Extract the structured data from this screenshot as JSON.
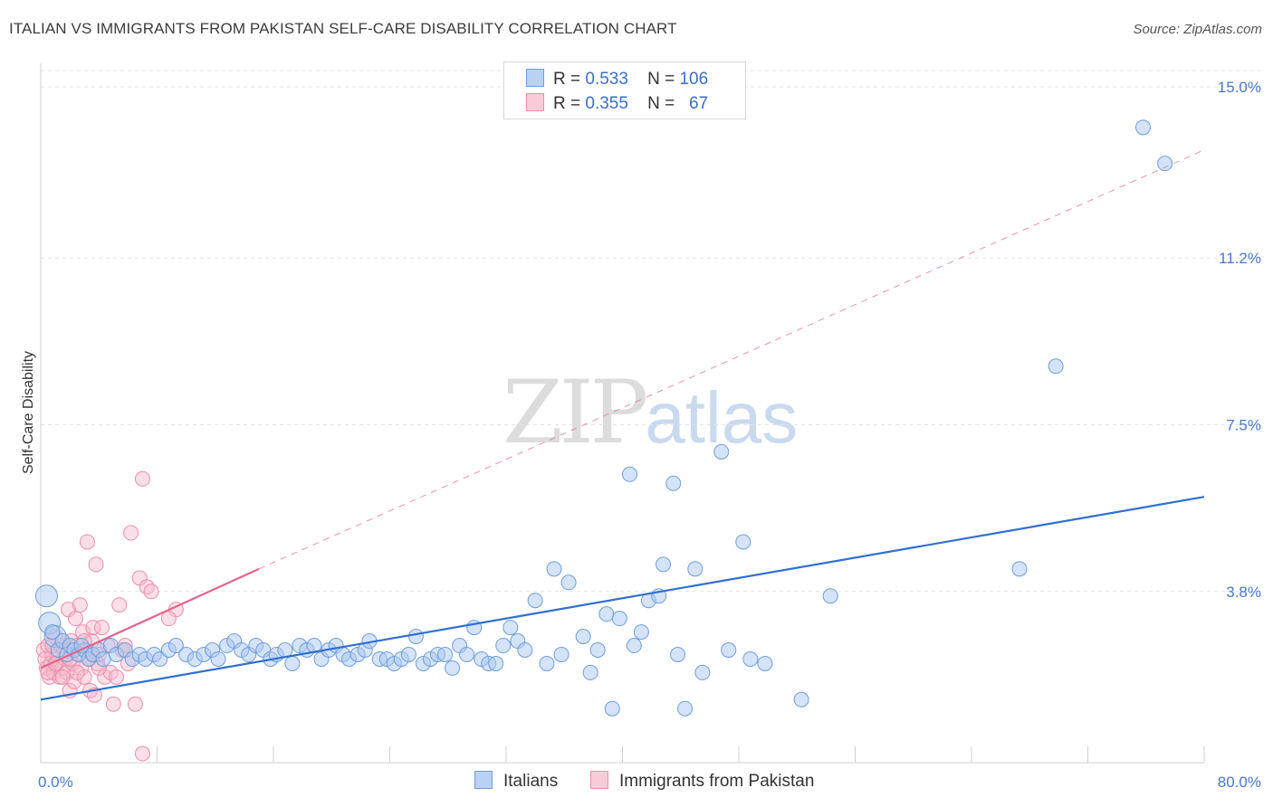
{
  "title": "ITALIAN VS IMMIGRANTS FROM PAKISTAN SELF-CARE DISABILITY CORRELATION CHART",
  "source": "Source: ZipAtlas.com",
  "watermark": {
    "zip": "ZIP",
    "atlas": "atlas"
  },
  "legend": {
    "rows": [
      {
        "r_label": "R =",
        "r_value": "0.533",
        "n_label": "N =",
        "n_value": "106"
      },
      {
        "r_label": "R =",
        "r_value": "0.355",
        "n_label": "N =",
        "n_value": "67"
      }
    ]
  },
  "bottom_legend": [
    {
      "label": "Italians"
    },
    {
      "label": "Immigrants from Pakistan"
    }
  ],
  "colors": {
    "blue_fill": "#a9c7f0",
    "blue_stroke": "#6f9ddc",
    "blue_line": "#2f6fd0",
    "pink_fill": "#f6b9cc",
    "pink_stroke": "#ec8eaa",
    "pink_line": "#e4648c"
  },
  "chart_data": {
    "type": "scatter",
    "title": "ITALIAN VS IMMIGRANTS FROM PAKISTAN SELF-CARE DISABILITY CORRELATION CHART",
    "xlabel": "",
    "ylabel": "Self-Care Disability",
    "xlim": [
      0,
      80
    ],
    "ylim": [
      0,
      15.5
    ],
    "x_tick_labels": [
      "0.0%",
      "80.0%"
    ],
    "y_ticks": [
      3.8,
      7.5,
      11.2,
      15.0
    ],
    "y_tick_labels": [
      "3.8%",
      "7.5%",
      "11.2%",
      "15.0%"
    ],
    "grid": "horizontal dashed",
    "legend_position": "top-center",
    "series": [
      {
        "name": "Italians",
        "color": "#a9c7f0",
        "trend": {
          "x": [
            0,
            80
          ],
          "y": [
            1.4,
            5.9
          ],
          "style": "solid"
        },
        "points": [
          [
            0.4,
            3.7
          ],
          [
            0.6,
            3.1
          ],
          [
            1.0,
            2.8
          ],
          [
            1.2,
            2.5
          ],
          [
            1.5,
            2.7
          ],
          [
            1.8,
            2.4
          ],
          [
            2.0,
            2.6
          ],
          [
            2.3,
            2.5
          ],
          [
            2.6,
            2.4
          ],
          [
            3.0,
            2.5
          ],
          [
            3.3,
            2.3
          ],
          [
            3.6,
            2.4
          ],
          [
            4.0,
            2.5
          ],
          [
            4.3,
            2.3
          ],
          [
            4.8,
            2.6
          ],
          [
            5.2,
            2.4
          ],
          [
            5.8,
            2.5
          ],
          [
            6.3,
            2.3
          ],
          [
            6.8,
            2.4
          ],
          [
            7.2,
            2.3
          ],
          [
            7.8,
            2.4
          ],
          [
            8.2,
            2.3
          ],
          [
            8.8,
            2.5
          ],
          [
            9.3,
            2.6
          ],
          [
            10.0,
            2.4
          ],
          [
            10.6,
            2.3
          ],
          [
            11.2,
            2.4
          ],
          [
            11.8,
            2.5
          ],
          [
            12.2,
            2.3
          ],
          [
            12.8,
            2.6
          ],
          [
            13.3,
            2.7
          ],
          [
            13.8,
            2.5
          ],
          [
            14.3,
            2.4
          ],
          [
            14.8,
            2.6
          ],
          [
            15.3,
            2.5
          ],
          [
            15.8,
            2.3
          ],
          [
            16.2,
            2.4
          ],
          [
            16.8,
            2.5
          ],
          [
            17.3,
            2.2
          ],
          [
            17.8,
            2.6
          ],
          [
            18.3,
            2.5
          ],
          [
            18.8,
            2.6
          ],
          [
            19.3,
            2.3
          ],
          [
            19.8,
            2.5
          ],
          [
            20.3,
            2.6
          ],
          [
            20.8,
            2.4
          ],
          [
            21.2,
            2.3
          ],
          [
            21.8,
            2.4
          ],
          [
            22.3,
            2.5
          ],
          [
            22.6,
            2.7
          ],
          [
            23.3,
            2.3
          ],
          [
            23.8,
            2.3
          ],
          [
            24.3,
            2.2
          ],
          [
            24.8,
            2.3
          ],
          [
            25.3,
            2.4
          ],
          [
            25.8,
            2.8
          ],
          [
            26.3,
            2.2
          ],
          [
            26.8,
            2.3
          ],
          [
            27.3,
            2.4
          ],
          [
            27.8,
            2.4
          ],
          [
            28.3,
            2.1
          ],
          [
            28.8,
            2.6
          ],
          [
            29.3,
            2.4
          ],
          [
            29.8,
            3.0
          ],
          [
            30.3,
            2.3
          ],
          [
            30.8,
            2.2
          ],
          [
            31.3,
            2.2
          ],
          [
            31.8,
            2.6
          ],
          [
            32.3,
            3.0
          ],
          [
            32.8,
            2.7
          ],
          [
            33.3,
            2.5
          ],
          [
            34.0,
            3.6
          ],
          [
            34.8,
            2.2
          ],
          [
            35.3,
            4.3
          ],
          [
            35.8,
            2.4
          ],
          [
            36.3,
            4.0
          ],
          [
            37.3,
            2.8
          ],
          [
            37.8,
            2.0
          ],
          [
            38.3,
            2.5
          ],
          [
            38.9,
            3.3
          ],
          [
            39.3,
            1.2
          ],
          [
            39.8,
            3.2
          ],
          [
            40.5,
            6.4
          ],
          [
            40.8,
            2.6
          ],
          [
            41.3,
            2.9
          ],
          [
            41.8,
            3.6
          ],
          [
            42.5,
            3.7
          ],
          [
            42.8,
            4.4
          ],
          [
            43.5,
            6.2
          ],
          [
            43.8,
            2.4
          ],
          [
            44.3,
            1.2
          ],
          [
            45.0,
            4.3
          ],
          [
            45.5,
            2.0
          ],
          [
            46.8,
            6.9
          ],
          [
            47.3,
            2.5
          ],
          [
            48.3,
            4.9
          ],
          [
            48.8,
            2.3
          ],
          [
            49.8,
            2.2
          ],
          [
            52.3,
            1.4
          ],
          [
            54.3,
            3.7
          ],
          [
            67.3,
            4.3
          ],
          [
            69.8,
            8.8
          ],
          [
            75.8,
            14.1
          ],
          [
            77.3,
            13.3
          ],
          [
            0.8,
            2.9
          ],
          [
            2.8,
            2.6
          ]
        ]
      },
      {
        "name": "Immigrants from Pakistan",
        "color": "#f6b9cc",
        "trend": {
          "x": [
            0,
            15
          ],
          "y": [
            2.1,
            4.3
          ],
          "style": "solid",
          "extended": {
            "x": [
              15,
              80
            ],
            "y": [
              4.3,
              13.6
            ],
            "style": "dashed"
          }
        },
        "points": [
          [
            0.2,
            2.5
          ],
          [
            0.3,
            2.3
          ],
          [
            0.4,
            2.1
          ],
          [
            0.5,
            2.6
          ],
          [
            0.6,
            1.9
          ],
          [
            0.7,
            2.2
          ],
          [
            0.8,
            2.4
          ],
          [
            0.9,
            2.0
          ],
          [
            1.0,
            2.8
          ],
          [
            1.1,
            2.2
          ],
          [
            1.2,
            2.4
          ],
          [
            1.3,
            1.9
          ],
          [
            1.4,
            2.6
          ],
          [
            1.5,
            2.1
          ],
          [
            1.6,
            2.5
          ],
          [
            1.7,
            2.3
          ],
          [
            1.8,
            2.0
          ],
          [
            1.9,
            3.4
          ],
          [
            2.0,
            1.6
          ],
          [
            2.1,
            2.7
          ],
          [
            2.2,
            2.2
          ],
          [
            2.3,
            1.8
          ],
          [
            2.4,
            3.2
          ],
          [
            2.5,
            2.6
          ],
          [
            2.6,
            2.4
          ],
          [
            2.7,
            3.5
          ],
          [
            2.8,
            2.1
          ],
          [
            2.9,
            2.9
          ],
          [
            3.0,
            1.9
          ],
          [
            3.1,
            2.5
          ],
          [
            3.2,
            4.9
          ],
          [
            3.3,
            2.3
          ],
          [
            3.4,
            1.6
          ],
          [
            3.5,
            2.7
          ],
          [
            3.6,
            3.0
          ],
          [
            3.7,
            1.5
          ],
          [
            3.8,
            4.4
          ],
          [
            3.9,
            2.2
          ],
          [
            4.0,
            2.4
          ],
          [
            4.2,
            3.0
          ],
          [
            4.4,
            1.9
          ],
          [
            4.6,
            2.6
          ],
          [
            4.8,
            2.0
          ],
          [
            5.0,
            1.3
          ],
          [
            5.2,
            1.9
          ],
          [
            5.4,
            3.5
          ],
          [
            5.6,
            2.5
          ],
          [
            5.8,
            2.6
          ],
          [
            6.2,
            5.1
          ],
          [
            6.5,
            1.3
          ],
          [
            6.8,
            4.1
          ],
          [
            7.0,
            0.2
          ],
          [
            7.0,
            6.3
          ],
          [
            7.3,
            3.9
          ],
          [
            7.6,
            3.8
          ],
          [
            9.3,
            3.4
          ],
          [
            0.5,
            2.0
          ],
          [
            1.0,
            2.2
          ],
          [
            1.5,
            1.9
          ],
          [
            2.0,
            2.3
          ],
          [
            2.5,
            2.0
          ],
          [
            3.0,
            2.7
          ],
          [
            3.5,
            2.4
          ],
          [
            4.0,
            2.1
          ],
          [
            0.8,
            2.6
          ],
          [
            6.0,
            2.2
          ],
          [
            8.8,
            3.2
          ]
        ]
      }
    ]
  }
}
